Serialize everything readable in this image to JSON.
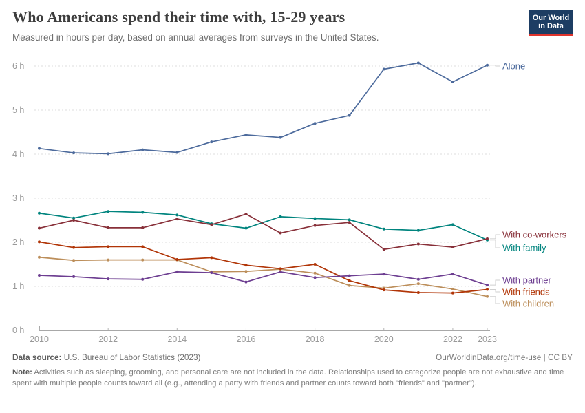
{
  "logo": {
    "line1": "Our World",
    "line2": "in Data",
    "bg": "#1d3d63",
    "accent": "#e0342c"
  },
  "chart_data": {
    "type": "line",
    "title": "Who Americans spend their time with, 15-29 years",
    "subtitle": "Measured in hours per day, based on annual averages from surveys in the United States.",
    "x": [
      2010,
      2011,
      2012,
      2013,
      2014,
      2015,
      2016,
      2017,
      2018,
      2019,
      2020,
      2021,
      2022,
      2023
    ],
    "x_tick_labels": [
      "2010",
      "2012",
      "2014",
      "2016",
      "2018",
      "2020",
      "2022",
      "2023"
    ],
    "x_tick_years": [
      2010,
      2012,
      2014,
      2016,
      2018,
      2020,
      2022,
      2023
    ],
    "xlabel": "",
    "ylabel": "",
    "ylim": [
      0,
      6
    ],
    "ytick_values": [
      0,
      1,
      2,
      3,
      4,
      5,
      6
    ],
    "ytick_labels": [
      "0 h",
      "1 h",
      "2 h",
      "3 h",
      "4 h",
      "5 h",
      "6 h"
    ],
    "grid": "horizontal-dashed",
    "legend_position": "labels-at-line-ends-right",
    "series": [
      {
        "name": "Alone",
        "color": "#4C6A9C",
        "values": [
          4.13,
          4.03,
          4.01,
          4.1,
          4.04,
          4.28,
          4.44,
          4.38,
          4.7,
          4.88,
          5.93,
          6.07,
          5.64,
          6.02
        ]
      },
      {
        "name": "With co-workers",
        "color": "#883039",
        "values": [
          2.32,
          2.5,
          2.33,
          2.33,
          2.53,
          2.4,
          2.64,
          2.21,
          2.38,
          2.45,
          1.84,
          1.96,
          1.89,
          2.08
        ]
      },
      {
        "name": "With family",
        "color": "#00847E",
        "values": [
          2.66,
          2.55,
          2.7,
          2.68,
          2.62,
          2.42,
          2.32,
          2.58,
          2.54,
          2.51,
          2.3,
          2.27,
          2.4,
          2.05
        ]
      },
      {
        "name": "With partner",
        "color": "#6D3E91",
        "values": [
          1.25,
          1.22,
          1.17,
          1.16,
          1.33,
          1.31,
          1.1,
          1.33,
          1.2,
          1.24,
          1.28,
          1.16,
          1.28,
          1.03
        ]
      },
      {
        "name": "With friends",
        "color": "#B13507",
        "values": [
          2.01,
          1.88,
          1.9,
          1.9,
          1.61,
          1.65,
          1.48,
          1.4,
          1.5,
          1.13,
          0.92,
          0.86,
          0.85,
          0.93
        ]
      },
      {
        "name": "With children",
        "color": "#BC8E5A",
        "values": [
          1.66,
          1.59,
          1.6,
          1.6,
          1.6,
          1.33,
          1.34,
          1.39,
          1.3,
          1.02,
          0.96,
          1.06,
          0.94,
          0.77
        ]
      }
    ]
  },
  "footer": {
    "datasource_label": "Data source:",
    "datasource_text": " U.S. Bureau of Labor Statistics (2023)",
    "license": "OurWorldinData.org/time-use | CC BY",
    "note_label": "Note:",
    "note_text": " Activities such as sleeping, grooming, and personal care are not included in the data. Relationships used to categorize people are not exhaustive and time spent with multiple people counts toward all (e.g., attending a party with friends and partner counts toward both \"friends\" and \"partner\")."
  }
}
